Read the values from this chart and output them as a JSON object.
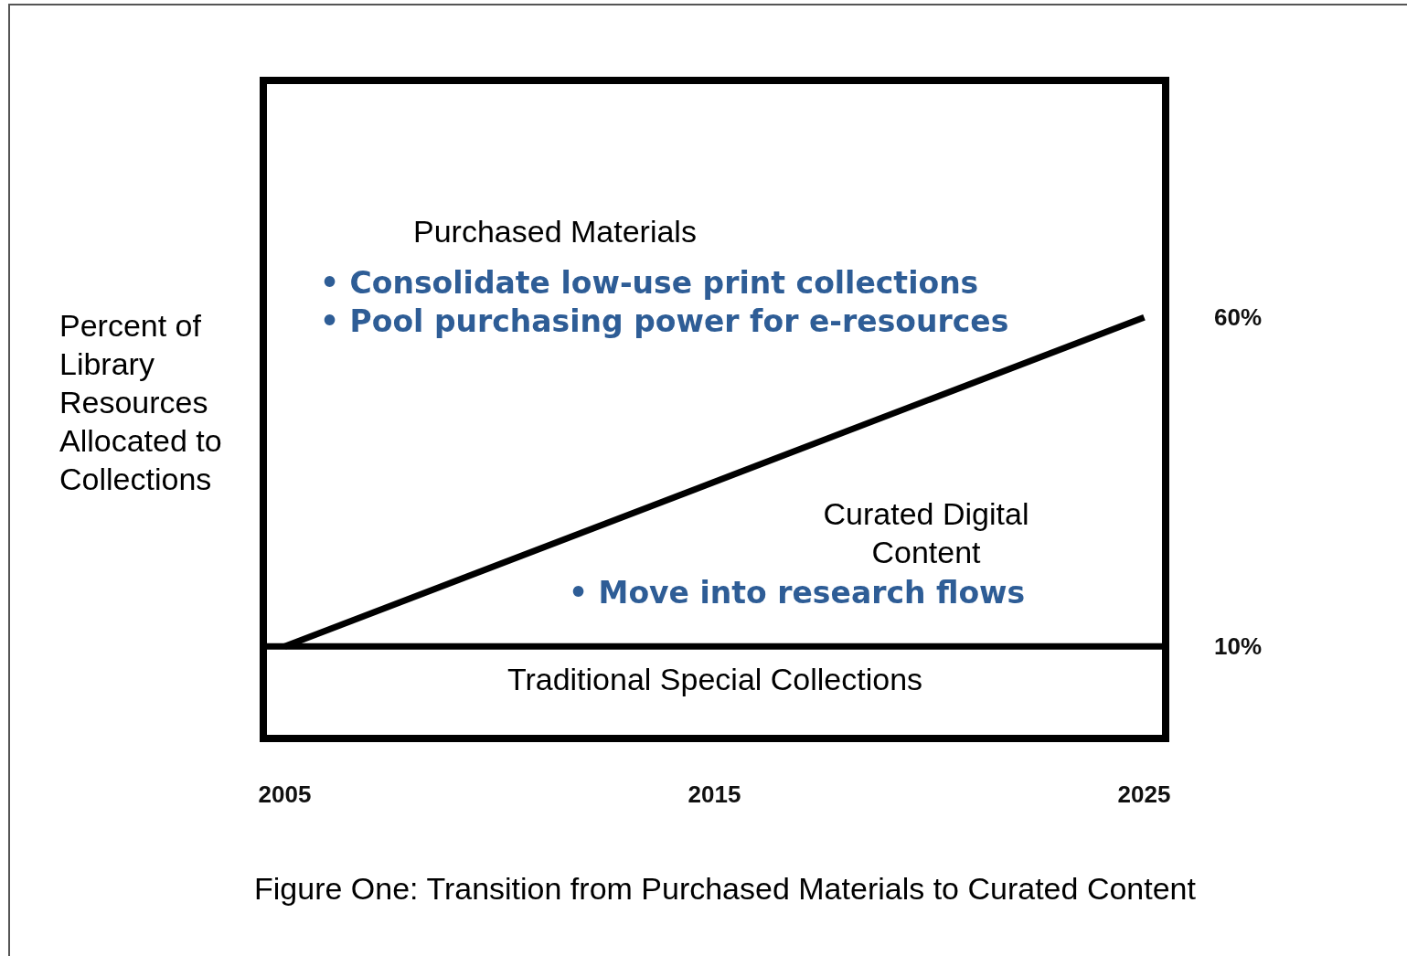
{
  "chart_data": {
    "type": "line",
    "ylabel": "Percent of Library Resources Allocated to Collections",
    "x": [
      2005,
      2025
    ],
    "series": [
      {
        "color": "#000000",
        "values": [
          10,
          60
        ]
      }
    ],
    "xlim": [
      2004.5,
      2025.5
    ],
    "xticks": [
      2005,
      2015,
      2025
    ],
    "ylim": [
      -4,
      96
    ],
    "yticks": [
      {
        "value": 10,
        "label": "10%"
      },
      {
        "value": 60,
        "label": "60%"
      }
    ],
    "ref_lines": [
      {
        "axis": "y",
        "value": 10,
        "color": "#000000"
      }
    ],
    "grid": false,
    "marker": "none",
    "line_style": "solid",
    "annotations": [
      "Purchased Materials",
      "• Consolidate low-use print collections",
      "• Pool purchasing power for e-resources",
      "Curated Digital Content",
      "• Move into research flows",
      "Traditional Special Collections",
      "Figure One: Transition from Purchased Materials to Curated Content"
    ]
  }
}
